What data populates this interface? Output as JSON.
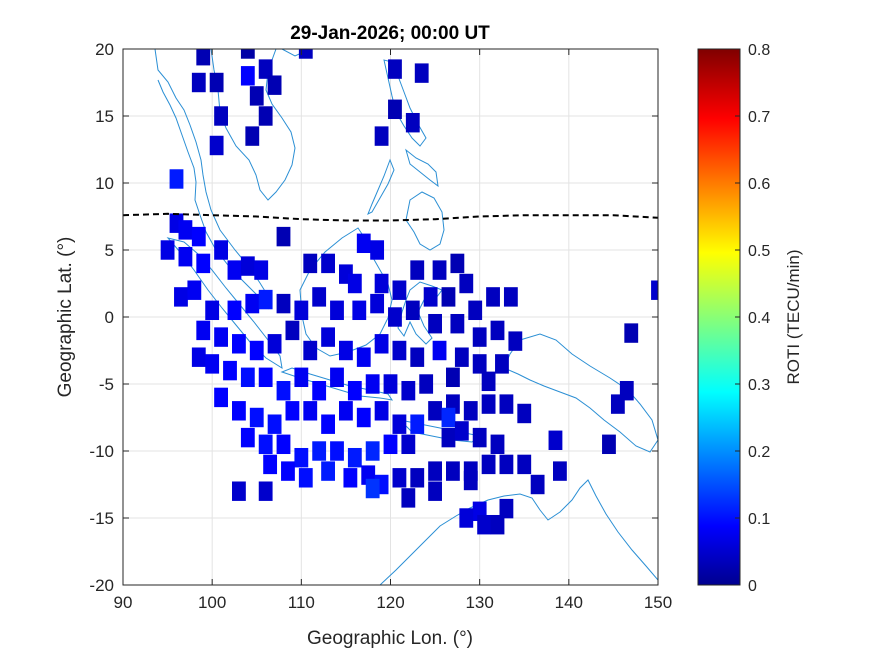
{
  "chart_data": {
    "type": "heatmap",
    "title": "29-Jan-2026; 00:00 UT",
    "xlabel": "Geographic Lon. (°)",
    "ylabel": "Geographic Lat. (°)",
    "xlim": [
      90,
      150
    ],
    "ylim": [
      -20,
      20
    ],
    "x_ticks": [
      "90",
      "100",
      "110",
      "120",
      "130",
      "140",
      "150"
    ],
    "y_ticks": [
      "20",
      "15",
      "10",
      "5",
      "0",
      "-5",
      "-10",
      "-15",
      "-20"
    ],
    "grid": true,
    "colorbar": {
      "label": "ROTI (TECU/min)",
      "range": [
        0,
        0.8
      ],
      "ticks": [
        "0",
        "0.1",
        "0.2",
        "0.3",
        "0.4",
        "0.5",
        "0.6",
        "0.7",
        "0.8"
      ],
      "colormap": "jet"
    },
    "magnetic_equator": [
      [
        90,
        7.6
      ],
      [
        95,
        7.7
      ],
      [
        100,
        7.6
      ],
      [
        105,
        7.5
      ],
      [
        110,
        7.3
      ],
      [
        115,
        7.2
      ],
      [
        120,
        7.2
      ],
      [
        125,
        7.3
      ],
      [
        130,
        7.5
      ],
      [
        135,
        7.6
      ],
      [
        140,
        7.6
      ],
      [
        145,
        7.6
      ],
      [
        150,
        7.4
      ]
    ],
    "points": [
      [
        99,
        19.5,
        0.04
      ],
      [
        104,
        20,
        0.03
      ],
      [
        106,
        18.5,
        0.05
      ],
      [
        110.5,
        20,
        0.05
      ],
      [
        98.5,
        17.5,
        0.05
      ],
      [
        100.5,
        17.5,
        0.04
      ],
      [
        104,
        18,
        0.1
      ],
      [
        107,
        17.3,
        0.04
      ],
      [
        105,
        16.5,
        0.04
      ],
      [
        120.5,
        18.5,
        0.05
      ],
      [
        123.5,
        18.2,
        0.05
      ],
      [
        101,
        15,
        0.05
      ],
      [
        106,
        15,
        0.04
      ],
      [
        120.5,
        15.5,
        0.04
      ],
      [
        104.5,
        13.5,
        0.04
      ],
      [
        119,
        13.5,
        0.05
      ],
      [
        122.5,
        14.5,
        0.05
      ],
      [
        100.5,
        12.8,
        0.06
      ],
      [
        96,
        10.3,
        0.12
      ],
      [
        96,
        7,
        0.08
      ],
      [
        97,
        6.5,
        0.09
      ],
      [
        98.5,
        6,
        0.1
      ],
      [
        95,
        5,
        0.08
      ],
      [
        97,
        4.5,
        0.09
      ],
      [
        99,
        4,
        0.1
      ],
      [
        101,
        5,
        0.08
      ],
      [
        102.5,
        3.5,
        0.09
      ],
      [
        104,
        3.8,
        0.07
      ],
      [
        105.5,
        3.5,
        0.08
      ],
      [
        108,
        6,
        0.04
      ],
      [
        111,
        4,
        0.05
      ],
      [
        113,
        4,
        0.06
      ],
      [
        115,
        3.2,
        0.07
      ],
      [
        117,
        5.5,
        0.09
      ],
      [
        118.5,
        5,
        0.08
      ],
      [
        116,
        2.5,
        0.08
      ],
      [
        119,
        2.5,
        0.07
      ],
      [
        121,
        2,
        0.06
      ],
      [
        123,
        3.5,
        0.05
      ],
      [
        125.5,
        3.5,
        0.05
      ],
      [
        126.5,
        1.5,
        0.04
      ],
      [
        128.5,
        2.5,
        0.05
      ],
      [
        127.5,
        4,
        0.04
      ],
      [
        96.5,
        1.5,
        0.08
      ],
      [
        98,
        2,
        0.09
      ],
      [
        100,
        0.5,
        0.08
      ],
      [
        102.5,
        0.5,
        0.1
      ],
      [
        104.5,
        1,
        0.09
      ],
      [
        106,
        1.3,
        0.12
      ],
      [
        108,
        1,
        0.05
      ],
      [
        110,
        0.5,
        0.07
      ],
      [
        112,
        1.5,
        0.06
      ],
      [
        114,
        0.5,
        0.07
      ],
      [
        116.5,
        0.5,
        0.08
      ],
      [
        118.5,
        1,
        0.07
      ],
      [
        120.5,
        0,
        0.06
      ],
      [
        122.5,
        0.5,
        0.05
      ],
      [
        124.5,
        1.5,
        0.06
      ],
      [
        125,
        -0.5,
        0.05
      ],
      [
        127.5,
        -0.5,
        0.05
      ],
      [
        129.5,
        0.5,
        0.05
      ],
      [
        131.5,
        1.5,
        0.05
      ],
      [
        133.5,
        1.5,
        0.05
      ],
      [
        130,
        -1.5,
        0.05
      ],
      [
        132,
        -1,
        0.05
      ],
      [
        134,
        -1.8,
        0.05
      ],
      [
        147,
        -1.2,
        0.04
      ],
      [
        150,
        2,
        0.06
      ],
      [
        99,
        -1,
        0.09
      ],
      [
        101,
        -1.5,
        0.09
      ],
      [
        103,
        -2,
        0.1
      ],
      [
        105,
        -2.5,
        0.1
      ],
      [
        107,
        -2,
        0.07
      ],
      [
        109,
        -1,
        0.05
      ],
      [
        111,
        -2.5,
        0.06
      ],
      [
        113,
        -1.5,
        0.07
      ],
      [
        115,
        -2.5,
        0.08
      ],
      [
        117,
        -3,
        0.09
      ],
      [
        119,
        -2,
        0.08
      ],
      [
        121,
        -2.5,
        0.06
      ],
      [
        123,
        -3,
        0.05
      ],
      [
        125.5,
        -2.5,
        0.09
      ],
      [
        128,
        -3,
        0.05
      ],
      [
        130,
        -3.5,
        0.05
      ],
      [
        132.5,
        -3.5,
        0.05
      ],
      [
        127,
        -4.5,
        0.04
      ],
      [
        131,
        -4.8,
        0.05
      ],
      [
        98.5,
        -3,
        0.08
      ],
      [
        100,
        -3.5,
        0.09
      ],
      [
        102,
        -4,
        0.1
      ],
      [
        104,
        -4.5,
        0.11
      ],
      [
        106,
        -4.5,
        0.1
      ],
      [
        108,
        -5.5,
        0.11
      ],
      [
        110,
        -4.5,
        0.09
      ],
      [
        112,
        -5.5,
        0.1
      ],
      [
        114,
        -4.5,
        0.09
      ],
      [
        116,
        -5.5,
        0.1
      ],
      [
        118,
        -5,
        0.09
      ],
      [
        120,
        -5,
        0.07
      ],
      [
        122,
        -5.5,
        0.06
      ],
      [
        124,
        -5,
        0.05
      ],
      [
        101,
        -6,
        0.1
      ],
      [
        103,
        -7,
        0.1
      ],
      [
        105,
        -7.5,
        0.11
      ],
      [
        107,
        -8,
        0.11
      ],
      [
        109,
        -7,
        0.1
      ],
      [
        111,
        -7,
        0.09
      ],
      [
        113,
        -8,
        0.1
      ],
      [
        115,
        -7,
        0.09
      ],
      [
        117,
        -7.5,
        0.1
      ],
      [
        119,
        -7,
        0.08
      ],
      [
        121,
        -8,
        0.07
      ],
      [
        123,
        -8,
        0.12
      ],
      [
        125,
        -7,
        0.05
      ],
      [
        127,
        -6.5,
        0.05
      ],
      [
        129,
        -7,
        0.05
      ],
      [
        131,
        -6.5,
        0.05
      ],
      [
        133,
        -6.5,
        0.05
      ],
      [
        135,
        -7.2,
        0.05
      ],
      [
        146.5,
        -5.5,
        0.05
      ],
      [
        145.5,
        -6.5,
        0.05
      ],
      [
        126.5,
        -7.5,
        0.13
      ],
      [
        104,
        -9,
        0.1
      ],
      [
        106,
        -9.5,
        0.11
      ],
      [
        108,
        -9.5,
        0.1
      ],
      [
        110,
        -10.5,
        0.11
      ],
      [
        112,
        -10,
        0.12
      ],
      [
        114,
        -10,
        0.11
      ],
      [
        116,
        -10.5,
        0.12
      ],
      [
        118,
        -10,
        0.13
      ],
      [
        120,
        -9.5,
        0.1
      ],
      [
        122,
        -9.5,
        0.06
      ],
      [
        126.5,
        -9,
        0.05
      ],
      [
        128,
        -8.5,
        0.06
      ],
      [
        130,
        -9,
        0.05
      ],
      [
        132,
        -9.5,
        0.05
      ],
      [
        138.5,
        -9.2,
        0.06
      ],
      [
        144.5,
        -9.5,
        0.04
      ],
      [
        106.5,
        -11,
        0.1
      ],
      [
        108.5,
        -11.5,
        0.1
      ],
      [
        110.5,
        -12,
        0.11
      ],
      [
        113,
        -11.5,
        0.12
      ],
      [
        115.5,
        -12,
        0.1
      ],
      [
        117.5,
        -11.8,
        0.09
      ],
      [
        119,
        -12.5,
        0.11
      ],
      [
        121,
        -12,
        0.06
      ],
      [
        123,
        -12,
        0.05
      ],
      [
        125,
        -11.5,
        0.05
      ],
      [
        127,
        -11.5,
        0.05
      ],
      [
        129,
        -11.5,
        0.05
      ],
      [
        131,
        -11,
        0.05
      ],
      [
        133,
        -11,
        0.05
      ],
      [
        135,
        -11,
        0.05
      ],
      [
        139,
        -11.5,
        0.05
      ],
      [
        125,
        -13,
        0.05
      ],
      [
        129,
        -12.2,
        0.05
      ],
      [
        118,
        -12.8,
        0.14
      ],
      [
        103,
        -13,
        0.06
      ],
      [
        106,
        -13,
        0.06
      ],
      [
        122,
        -13.5,
        0.05
      ],
      [
        130,
        -14.5,
        0.08
      ],
      [
        133,
        -14.3,
        0.05
      ],
      [
        136.5,
        -12.5,
        0.05
      ],
      [
        128.5,
        -15,
        0.07
      ],
      [
        130.5,
        -15.5,
        0.06
      ],
      [
        132,
        -15.5,
        0.05
      ]
    ]
  }
}
